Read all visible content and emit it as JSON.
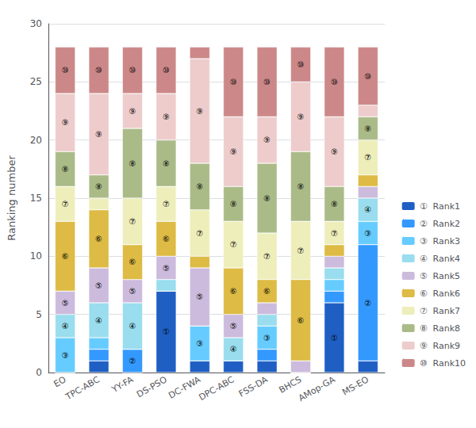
{
  "chart_data": {
    "type": "bar",
    "stacked": true,
    "grid": true,
    "legend": "lower right",
    "ylabel": "Ranking number",
    "categories": [
      "EO",
      "TPC-ABC",
      "YY-FA",
      "DS-PSO",
      "DC-FWA",
      "DPC-ABC",
      "FSS-DA",
      "BHCS",
      "AMop-GA",
      "MS-EO"
    ],
    "ylim": [
      0,
      30
    ],
    "yticks": [
      0,
      5,
      10,
      15,
      20,
      25,
      30
    ],
    "series": [
      {
        "name": "①  Rank1",
        "color": "#1f5fc4",
        "values": [
          0,
          1,
          0,
          7,
          1,
          1,
          1,
          0,
          6,
          1
        ],
        "annotations": [
          null,
          null,
          null,
          "①",
          null,
          null,
          null,
          null,
          "①",
          null
        ]
      },
      {
        "name": "②  Rank2",
        "color": "#3399ff",
        "values": [
          0,
          1,
          2,
          0,
          0,
          0,
          1,
          0,
          1,
          10
        ],
        "annotations": [
          null,
          null,
          "②",
          null,
          null,
          null,
          null,
          null,
          null,
          "②"
        ]
      },
      {
        "name": "③  Rank3",
        "color": "#66ccff",
        "values": [
          3,
          1,
          0,
          0,
          3,
          0,
          2,
          0,
          1,
          2
        ],
        "annotations": [
          "③",
          null,
          null,
          null,
          "③",
          null,
          "③",
          null,
          null,
          "③"
        ]
      },
      {
        "name": "④  Rank4",
        "color": "#99ddee",
        "values": [
          2,
          3,
          4,
          1,
          0,
          2,
          1,
          0,
          1,
          2
        ],
        "annotations": [
          "④",
          "④",
          "④",
          null,
          null,
          "④",
          null,
          null,
          null,
          "④"
        ]
      },
      {
        "name": "⑤  Rank5",
        "color": "#ccbbdd",
        "values": [
          2,
          3,
          2,
          2,
          5,
          2,
          1,
          1,
          1,
          1
        ],
        "annotations": [
          "⑤",
          "⑤",
          "⑤",
          "⑤",
          "⑤",
          "⑤",
          null,
          null,
          null,
          null
        ]
      },
      {
        "name": "⑥  Rank6",
        "color": "#ddbb44",
        "values": [
          6,
          5,
          3,
          3,
          1,
          4,
          2,
          7,
          1,
          1
        ],
        "annotations": [
          "⑥",
          "⑥",
          "⑥",
          "⑥",
          null,
          "⑥",
          "⑥",
          "⑥",
          null,
          null
        ]
      },
      {
        "name": "⑦  Rank7",
        "color": "#eeeebb",
        "values": [
          3,
          1,
          4,
          3,
          4,
          4,
          4,
          5,
          2,
          3
        ],
        "annotations": [
          "⑦",
          null,
          "⑦",
          "⑦",
          "⑦",
          "⑦",
          "⑦",
          "⑦",
          "⑦",
          "⑦"
        ]
      },
      {
        "name": "⑧  Rank8",
        "color": "#aabb88",
        "values": [
          3,
          2,
          6,
          4,
          4,
          3,
          6,
          6,
          3,
          2
        ],
        "annotations": [
          "⑧",
          "⑧",
          "⑧",
          "⑧",
          "⑧",
          "⑧",
          "⑧",
          "⑧",
          "⑧",
          "⑧"
        ]
      },
      {
        "name": "⑨  Rank9",
        "color": "#eecccc",
        "values": [
          5,
          7,
          3,
          4,
          9,
          6,
          4,
          6,
          6,
          1
        ],
        "annotations": [
          "⑨",
          "⑨",
          "⑨",
          "⑨",
          "⑨",
          "⑨",
          "⑨",
          "⑨",
          "⑨",
          null
        ]
      },
      {
        "name": "⑩  Rank10",
        "color": "#cc8888",
        "values": [
          4,
          4,
          4,
          4,
          1,
          6,
          6,
          3,
          6,
          5
        ],
        "annotations": [
          "⑩",
          "⑩",
          "⑩",
          "⑩",
          null,
          "⑩",
          "⑩",
          "⑩",
          "⑩",
          "⑩"
        ]
      }
    ]
  }
}
